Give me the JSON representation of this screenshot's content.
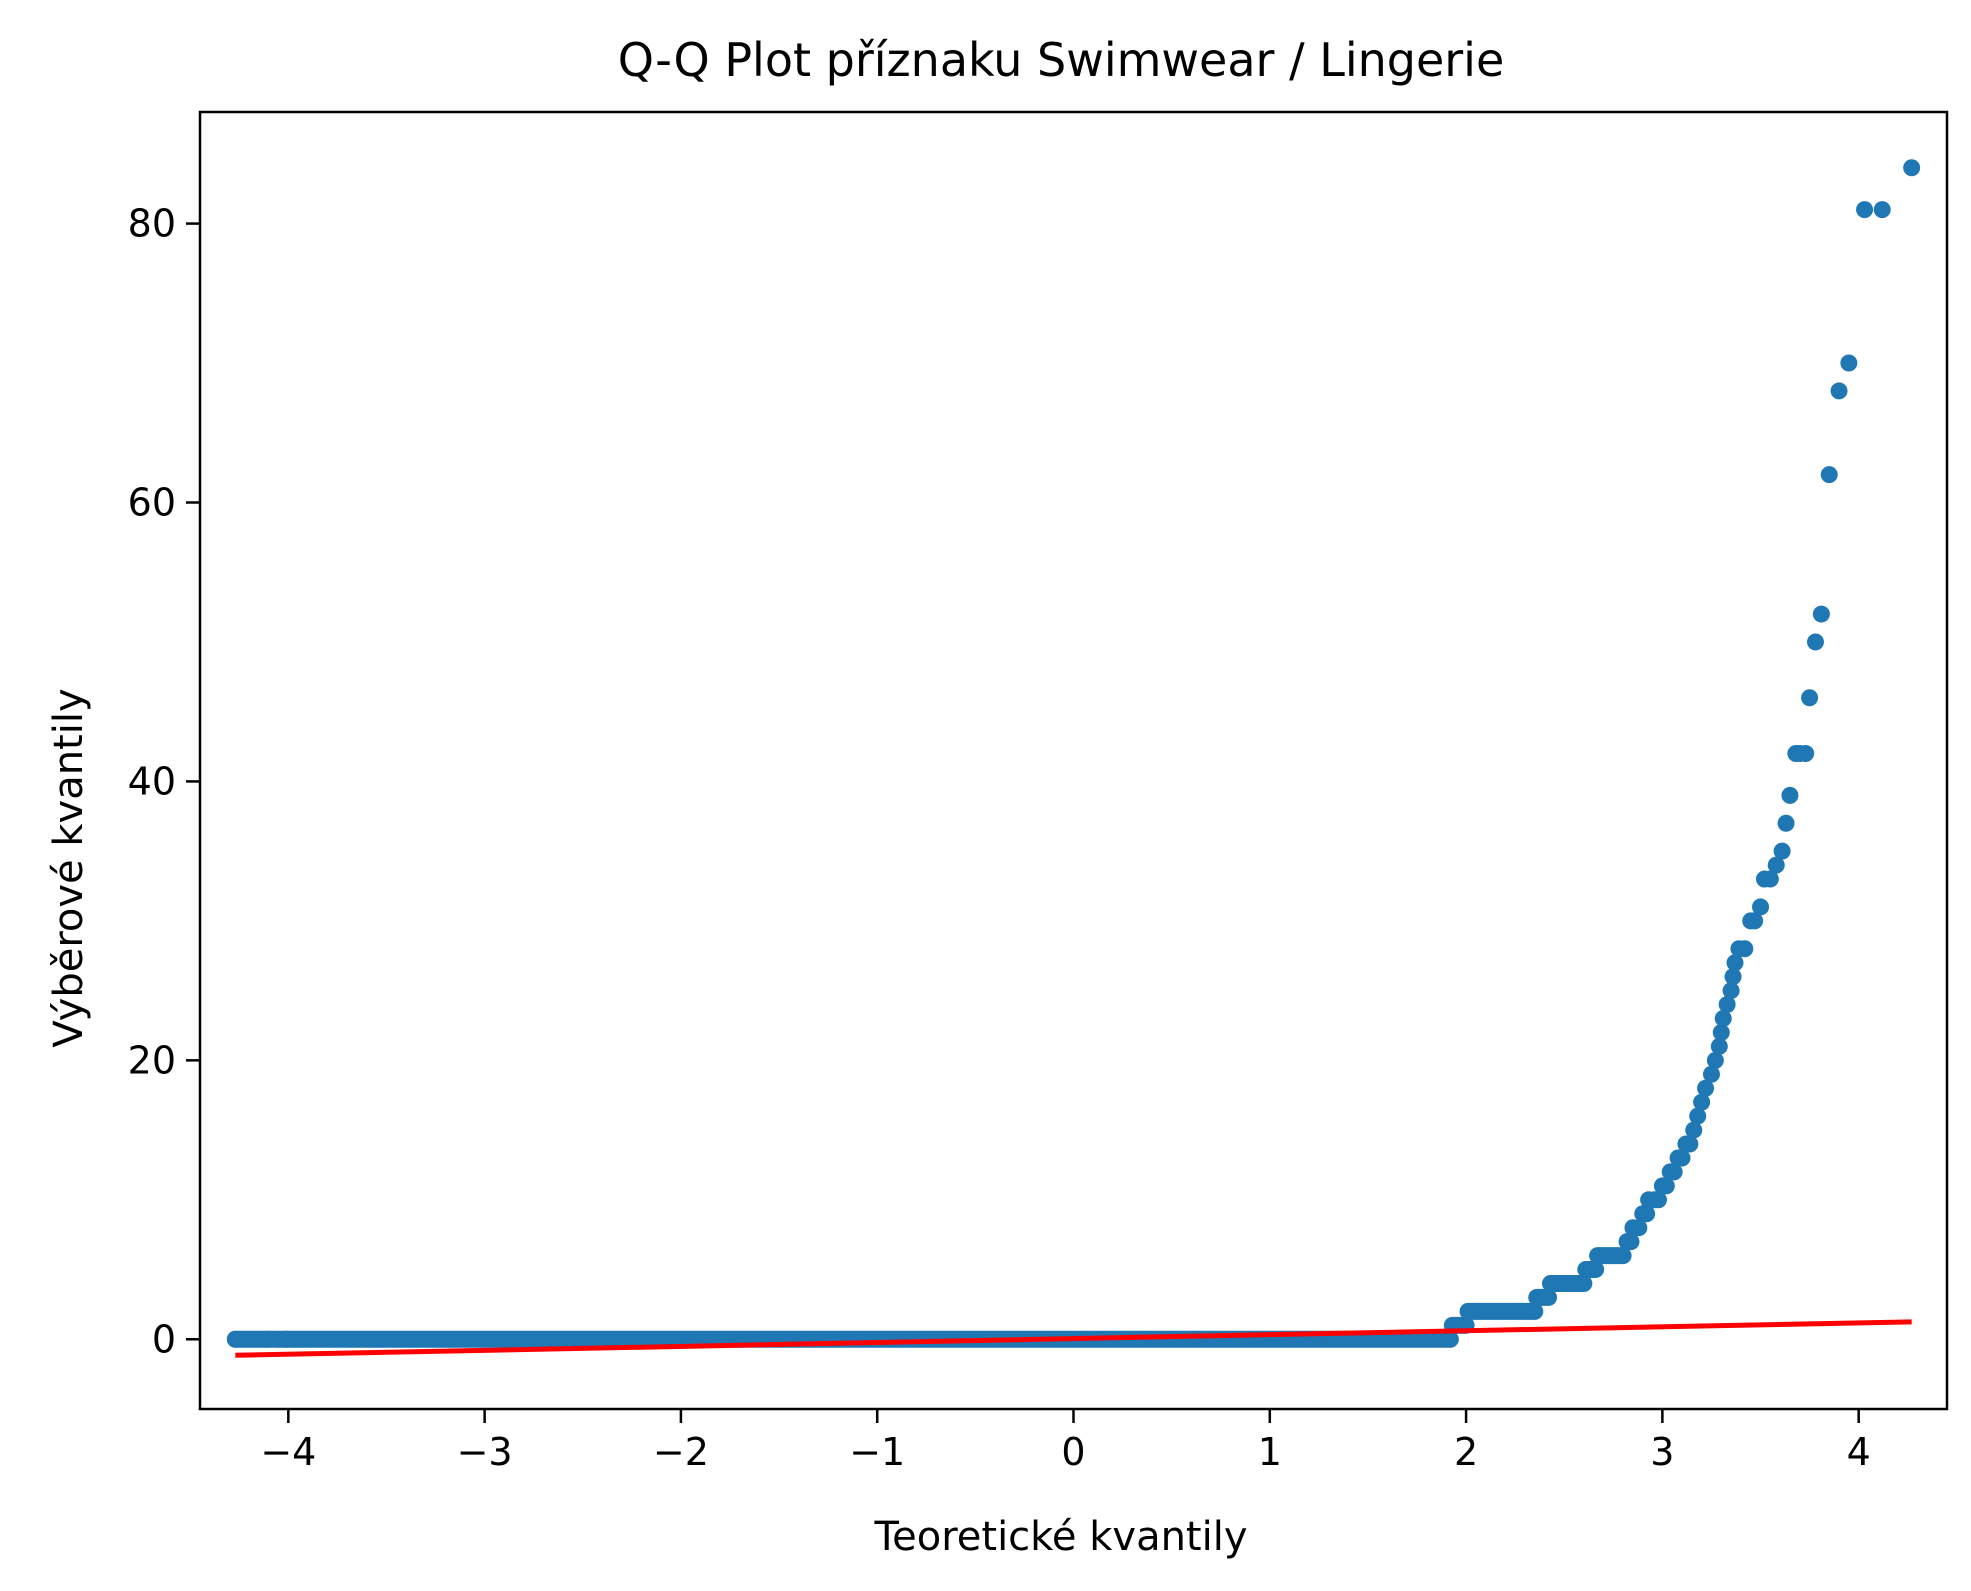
{
  "chart_data": {
    "type": "scatter",
    "title": "Q-Q Plot příznaku Swimwear / Lingerie",
    "xlabel": "Teoretické kvantily",
    "ylabel": "Výběrové kvantily",
    "xlim": [
      -4.45,
      4.45
    ],
    "ylim": [
      -5,
      88
    ],
    "xticks": [
      -4,
      -3,
      -2,
      -1,
      0,
      1,
      2,
      3,
      4
    ],
    "xtick_labels": [
      "−4",
      "−3",
      "−2",
      "−1",
      "0",
      "1",
      "2",
      "3",
      "4"
    ],
    "yticks": [
      0,
      20,
      40,
      60,
      80
    ],
    "ytick_labels": [
      "0",
      "20",
      "40",
      "60",
      "80"
    ],
    "grid": false,
    "point_color": "#1f77b4",
    "line_color": "#ff0000",
    "segments": [
      {
        "x0": -4.27,
        "x1": 1.92,
        "y": 0
      },
      {
        "x0": 1.93,
        "x1": 2.0,
        "y": 1
      },
      {
        "x0": 2.01,
        "x1": 2.35,
        "y": 2
      },
      {
        "x0": 2.36,
        "x1": 2.42,
        "y": 3
      },
      {
        "x0": 2.43,
        "x1": 2.6,
        "y": 4
      },
      {
        "x0": 2.61,
        "x1": 2.66,
        "y": 5
      },
      {
        "x0": 2.67,
        "x1": 2.8,
        "y": 6
      }
    ],
    "points": [
      [
        2.82,
        7
      ],
      [
        2.84,
        7
      ],
      [
        2.85,
        8
      ],
      [
        2.88,
        8
      ],
      [
        2.9,
        9
      ],
      [
        2.92,
        9
      ],
      [
        2.93,
        10
      ],
      [
        2.96,
        10
      ],
      [
        2.98,
        10
      ],
      [
        3.0,
        11
      ],
      [
        3.02,
        11
      ],
      [
        3.04,
        12
      ],
      [
        3.06,
        12
      ],
      [
        3.08,
        13
      ],
      [
        3.1,
        13
      ],
      [
        3.12,
        14
      ],
      [
        3.14,
        14
      ],
      [
        3.16,
        15
      ],
      [
        3.18,
        16
      ],
      [
        3.2,
        17
      ],
      [
        3.22,
        18
      ],
      [
        3.25,
        19
      ],
      [
        3.27,
        20
      ],
      [
        3.29,
        21
      ],
      [
        3.3,
        22
      ],
      [
        3.31,
        23
      ],
      [
        3.33,
        24
      ],
      [
        3.35,
        25
      ],
      [
        3.36,
        26
      ],
      [
        3.37,
        27
      ],
      [
        3.39,
        28
      ],
      [
        3.42,
        28
      ],
      [
        3.45,
        30
      ],
      [
        3.47,
        30
      ],
      [
        3.5,
        31
      ],
      [
        3.52,
        33
      ],
      [
        3.55,
        33
      ],
      [
        3.58,
        34
      ],
      [
        3.61,
        35
      ],
      [
        3.63,
        37
      ],
      [
        3.65,
        39
      ],
      [
        3.68,
        42
      ],
      [
        3.7,
        42
      ],
      [
        3.73,
        42
      ],
      [
        3.75,
        46
      ],
      [
        3.78,
        50
      ],
      [
        3.81,
        52
      ],
      [
        3.85,
        62
      ],
      [
        3.9,
        68
      ],
      [
        3.95,
        70
      ],
      [
        4.03,
        81
      ],
      [
        4.12,
        81
      ],
      [
        4.27,
        84
      ]
    ],
    "fit_line": {
      "x": [
        -4.27,
        4.27
      ],
      "y": [
        -1.15,
        1.25
      ]
    }
  }
}
